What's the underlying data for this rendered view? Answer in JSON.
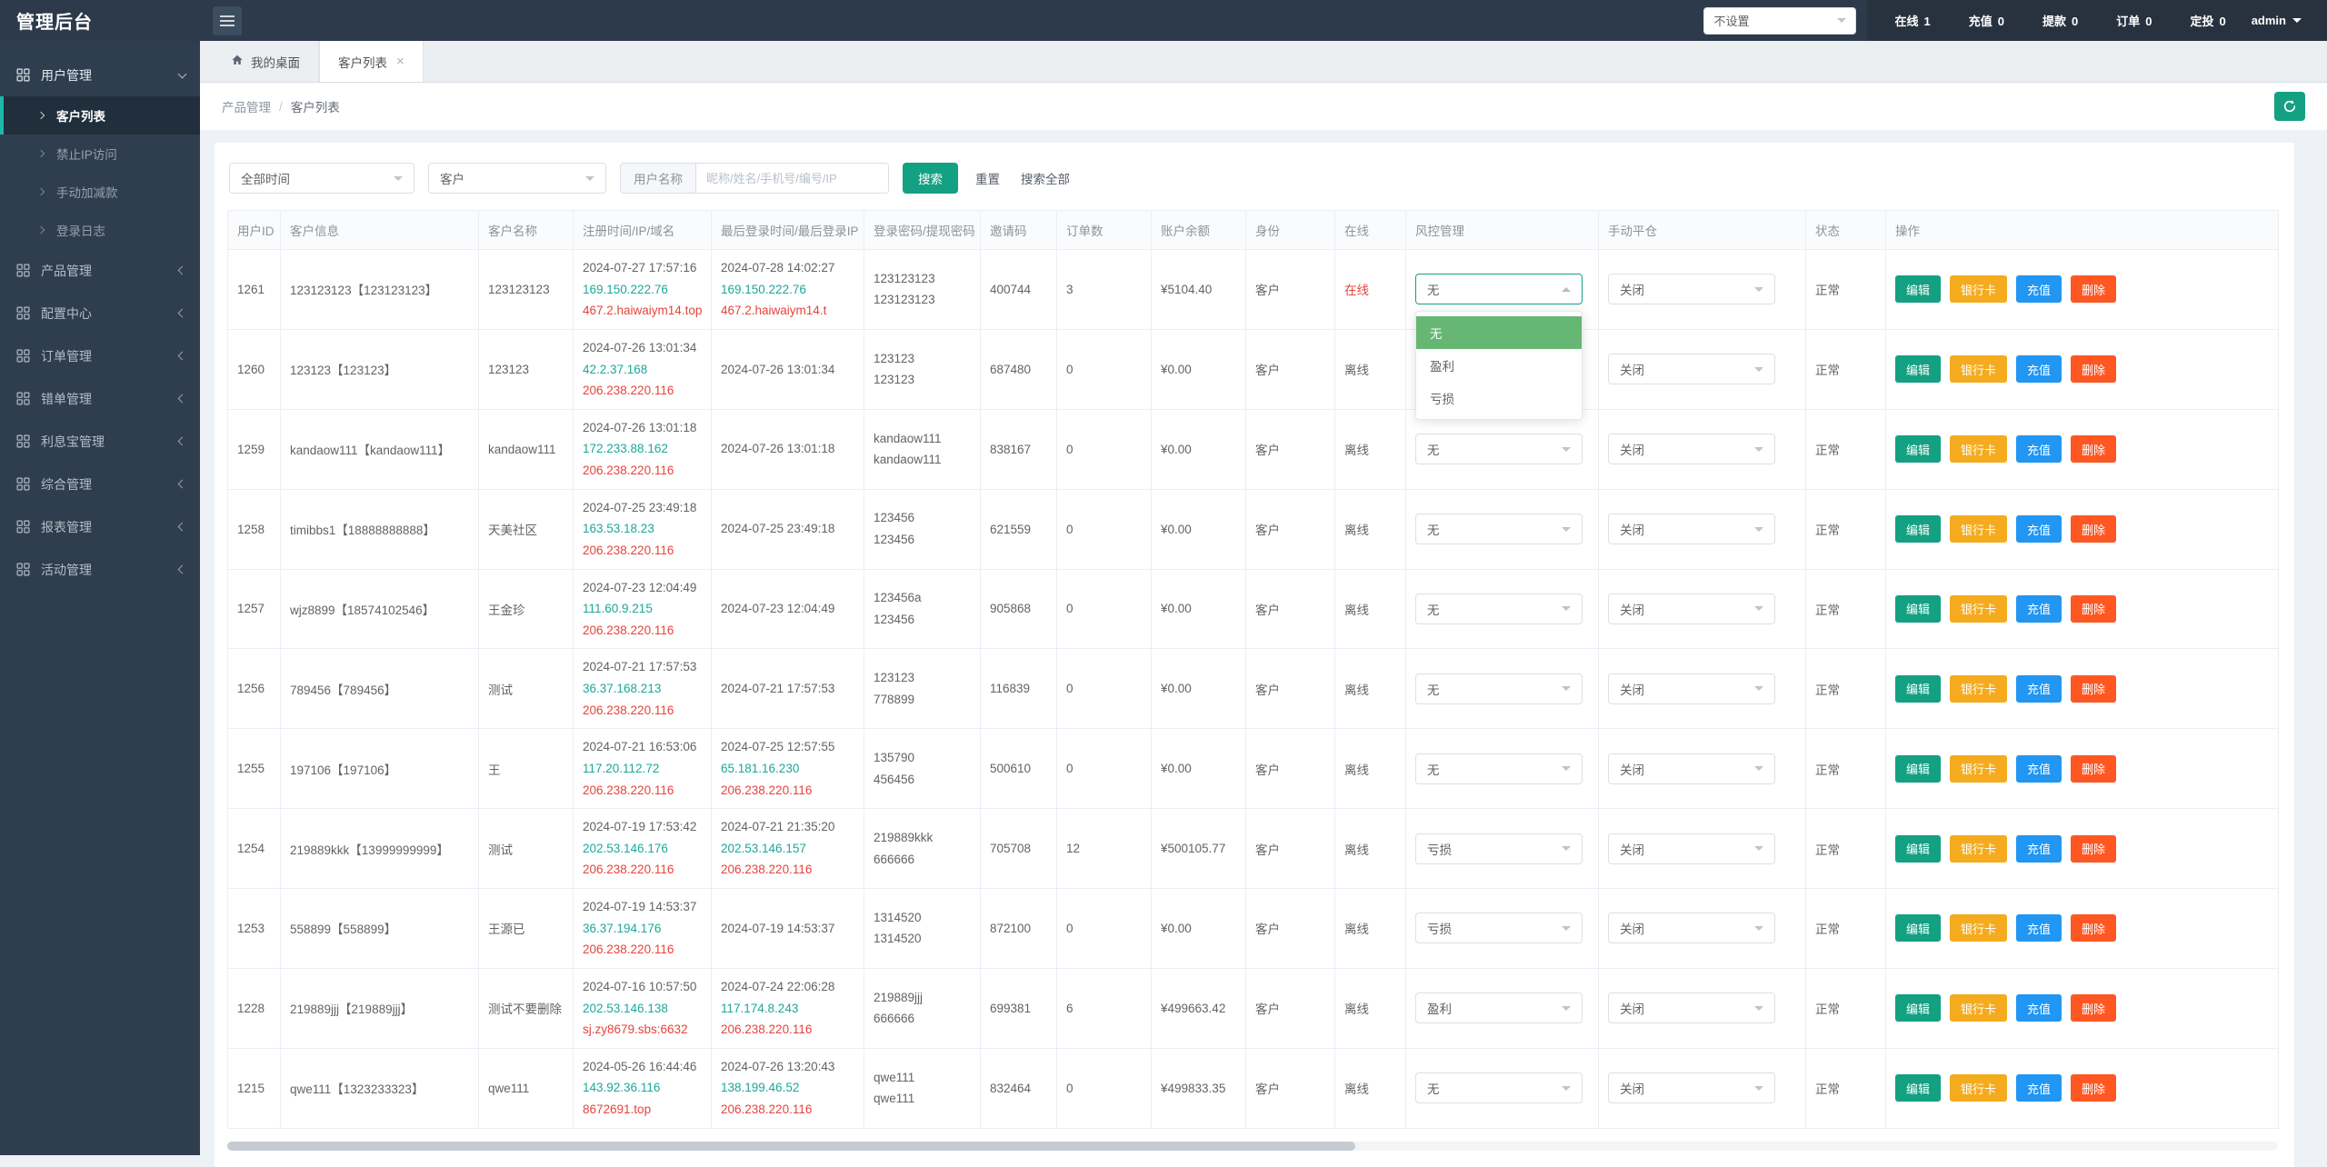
{
  "app": {
    "title": "管理后台"
  },
  "colors": {
    "dark": "#2d3a4b",
    "sidebar": "#2f3e4e",
    "sidebaractive": "#212e3c",
    "accentborder": "#1fb8a6",
    "teal": "#14a083",
    "amber": "#f5ab1e",
    "blue": "#2196f3",
    "orange": "#ff5722",
    "red": "#e6433b",
    "ipteal": "#1ca79b",
    "green": "#67b774"
  },
  "header": {
    "preset_select": {
      "value": "不设置"
    },
    "stats": [
      {
        "label": "在线",
        "value": "1"
      },
      {
        "label": "充值",
        "value": "0"
      },
      {
        "label": "提款",
        "value": "0"
      },
      {
        "label": "订单",
        "value": "0"
      },
      {
        "label": "定投",
        "value": "0"
      }
    ],
    "user": "admin"
  },
  "sidebar": {
    "groups": [
      {
        "label": "用户管理",
        "expanded": true,
        "children": [
          {
            "label": "客户列表",
            "active": true
          },
          {
            "label": "禁止IP访问"
          },
          {
            "label": "手动加减款"
          },
          {
            "label": "登录日志"
          }
        ]
      },
      {
        "label": "产品管理"
      },
      {
        "label": "配置中心"
      },
      {
        "label": "订单管理"
      },
      {
        "label": "错单管理"
      },
      {
        "label": "利息宝管理"
      },
      {
        "label": "综合管理"
      },
      {
        "label": "报表管理"
      },
      {
        "label": "活动管理"
      }
    ]
  },
  "tabs": [
    {
      "label": "我的桌面",
      "icon": "home",
      "active": false,
      "closable": false
    },
    {
      "label": "客户列表",
      "active": true,
      "closable": true
    }
  ],
  "breadcrumb": {
    "items": [
      "产品管理",
      "客户列表"
    ],
    "separator": "/"
  },
  "filters": {
    "time_select": "全部时间",
    "type_select": "客户",
    "keyword_label": "用户名称",
    "keyword_placeholder": "昵称/姓名/手机号/编号/IP",
    "keyword_value": "",
    "search": "搜索",
    "reset": "重置",
    "search_all": "搜索全部"
  },
  "table": {
    "columns": [
      "用户ID",
      "客户信息",
      "客户名称",
      "注册时间/IP/域名",
      "最后登录时间/最后登录IP",
      "登录密码/提现密码",
      "邀请码",
      "订单数",
      "账户余额",
      "身份",
      "在线",
      "风控管理",
      "手动平仓",
      "状态",
      "操作"
    ],
    "risk_options": [
      "无",
      "盈利",
      "亏损"
    ],
    "actions": [
      "编辑",
      "银行卡",
      "充值",
      "删除"
    ],
    "rows": [
      {
        "id": "1261",
        "info": "123123123【123123123】",
        "name": "123123123",
        "reg": {
          "time": "2024-07-27 17:57:16",
          "ip": "169.150.222.76",
          "domain": "467.2.haiwaiym14.top"
        },
        "login": {
          "time": "2024-07-28 14:02:27",
          "ip": "169.150.222.76",
          "domain": "467.2.haiwaiym14.t"
        },
        "passwords": [
          "123123123",
          "123123123"
        ],
        "invite": "400744",
        "orders": "3",
        "balance": "¥5104.40",
        "identity": "客户",
        "online": "在线",
        "online_state": "online",
        "risk": "无",
        "risk_open": true,
        "close_position": "关闭",
        "status": "正常"
      },
      {
        "id": "1260",
        "info": "123123【123123】",
        "name": "123123",
        "reg": {
          "time": "2024-07-26 13:01:34",
          "ip": "42.2.37.168",
          "domain": "206.238.220.116"
        },
        "login": {
          "time": "2024-07-26 13:01:34"
        },
        "passwords": [
          "123123",
          "123123"
        ],
        "invite": "687480",
        "orders": "0",
        "balance": "¥0.00",
        "identity": "客户",
        "online": "离线",
        "online_state": "offline",
        "risk": "无",
        "close_position": "关闭",
        "status": "正常"
      },
      {
        "id": "1259",
        "info": "kandaow111【kandaow111】",
        "name": "kandaow111",
        "reg": {
          "time": "2024-07-26 13:01:18",
          "ip": "172.233.88.162",
          "domain": "206.238.220.116"
        },
        "login": {
          "time": "2024-07-26 13:01:18"
        },
        "passwords": [
          "kandaow111",
          "kandaow111"
        ],
        "invite": "838167",
        "orders": "0",
        "balance": "¥0.00",
        "identity": "客户",
        "online": "离线",
        "online_state": "offline",
        "risk": "无",
        "close_position": "关闭",
        "status": "正常"
      },
      {
        "id": "1258",
        "info": "timibbs1【18888888888】",
        "name": "天美社区",
        "reg": {
          "time": "2024-07-25 23:49:18",
          "ip": "163.53.18.23",
          "domain": "206.238.220.116"
        },
        "login": {
          "time": "2024-07-25 23:49:18"
        },
        "passwords": [
          "123456",
          "123456"
        ],
        "invite": "621559",
        "orders": "0",
        "balance": "¥0.00",
        "identity": "客户",
        "online": "离线",
        "online_state": "offline",
        "risk": "无",
        "close_position": "关闭",
        "status": "正常"
      },
      {
        "id": "1257",
        "info": "wjz8899【18574102546】",
        "name": "王金珍",
        "reg": {
          "time": "2024-07-23 12:04:49",
          "ip": "111.60.9.215",
          "domain": "206.238.220.116"
        },
        "login": {
          "time": "2024-07-23 12:04:49"
        },
        "passwords": [
          "123456a",
          "123456"
        ],
        "invite": "905868",
        "orders": "0",
        "balance": "¥0.00",
        "identity": "客户",
        "online": "离线",
        "online_state": "offline",
        "risk": "无",
        "close_position": "关闭",
        "status": "正常"
      },
      {
        "id": "1256",
        "info": "789456【789456】",
        "name": "测试",
        "reg": {
          "time": "2024-07-21 17:57:53",
          "ip": "36.37.168.213",
          "domain": "206.238.220.116"
        },
        "login": {
          "time": "2024-07-21 17:57:53"
        },
        "passwords": [
          "123123",
          "778899"
        ],
        "invite": "116839",
        "orders": "0",
        "balance": "¥0.00",
        "identity": "客户",
        "online": "离线",
        "online_state": "offline",
        "risk": "无",
        "close_position": "关闭",
        "status": "正常"
      },
      {
        "id": "1255",
        "info": "197106【197106】",
        "name": "王",
        "reg": {
          "time": "2024-07-21 16:53:06",
          "ip": "117.20.112.72",
          "domain": "206.238.220.116"
        },
        "login": {
          "time": "2024-07-25 12:57:55",
          "ip": "65.181.16.230",
          "domain": "206.238.220.116"
        },
        "passwords": [
          "135790",
          "456456"
        ],
        "invite": "500610",
        "orders": "0",
        "balance": "¥0.00",
        "identity": "客户",
        "online": "离线",
        "online_state": "offline",
        "risk": "无",
        "close_position": "关闭",
        "status": "正常"
      },
      {
        "id": "1254",
        "info": "219889kkk【13999999999】",
        "name": "测试",
        "reg": {
          "time": "2024-07-19 17:53:42",
          "ip": "202.53.146.176",
          "domain": "206.238.220.116"
        },
        "login": {
          "time": "2024-07-21 21:35:20",
          "ip": "202.53.146.157",
          "domain": "206.238.220.116"
        },
        "passwords": [
          "219889kkk",
          "666666"
        ],
        "invite": "705708",
        "orders": "12",
        "balance": "¥500105.77",
        "identity": "客户",
        "online": "离线",
        "online_state": "offline",
        "risk": "亏损",
        "close_position": "关闭",
        "status": "正常"
      },
      {
        "id": "1253",
        "info": "558899【558899】",
        "name": "王源已",
        "reg": {
          "time": "2024-07-19 14:53:37",
          "ip": "36.37.194.176",
          "domain": "206.238.220.116"
        },
        "login": {
          "time": "2024-07-19 14:53:37"
        },
        "passwords": [
          "1314520",
          "1314520"
        ],
        "invite": "872100",
        "orders": "0",
        "balance": "¥0.00",
        "identity": "客户",
        "online": "离线",
        "online_state": "offline",
        "risk": "亏损",
        "close_position": "关闭",
        "status": "正常"
      },
      {
        "id": "1228",
        "info": "219889jjj【219889jjj】",
        "name": "测试不要删除",
        "reg": {
          "time": "2024-07-16 10:57:50",
          "ip": "202.53.146.138",
          "domain": "sj.zy8679.sbs:6632"
        },
        "login": {
          "time": "2024-07-24 22:06:28",
          "ip": "117.174.8.243",
          "domain": "206.238.220.116"
        },
        "passwords": [
          "219889jjj",
          "666666"
        ],
        "invite": "699381",
        "orders": "6",
        "balance": "¥499663.42",
        "identity": "客户",
        "online": "离线",
        "online_state": "offline",
        "risk": "盈利",
        "close_position": "关闭",
        "status": "正常"
      },
      {
        "id": "1215",
        "info": "qwe111【1323233323】",
        "name": "qwe111",
        "reg": {
          "time": "2024-05-26 16:44:46",
          "ip": "143.92.36.116",
          "domain": "8672691.top"
        },
        "login": {
          "time": "2024-07-26 13:20:43",
          "ip": "138.199.46.52",
          "domain": "206.238.220.116"
        },
        "passwords": [
          "qwe111",
          "qwe111"
        ],
        "invite": "832464",
        "orders": "0",
        "balance": "¥499833.35",
        "identity": "客户",
        "online": "离线",
        "online_state": "offline",
        "risk": "无",
        "close_position": "关闭",
        "status": "正常"
      }
    ]
  }
}
